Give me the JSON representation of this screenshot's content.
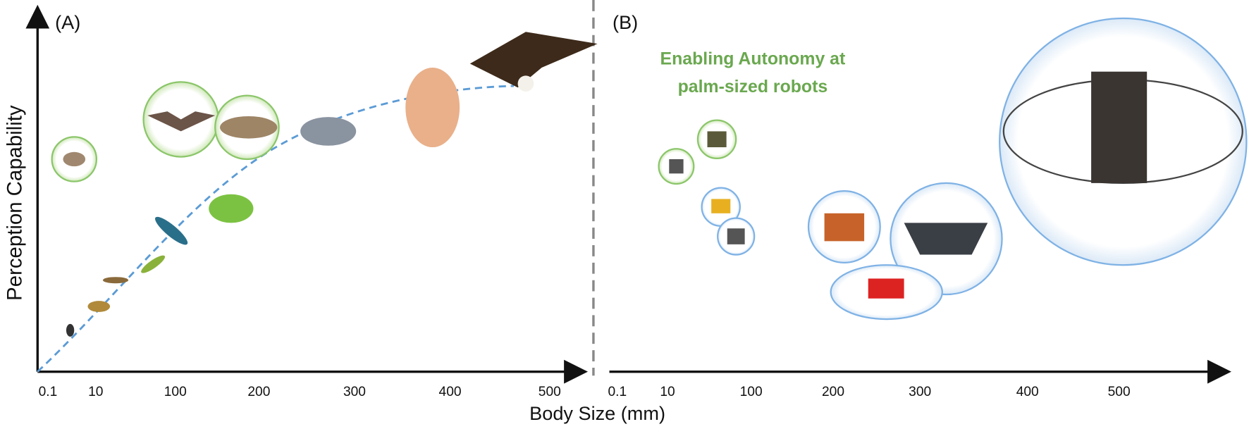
{
  "panel_a": {
    "label": "(A)",
    "y_axis_label": "Perception Capability",
    "x_ticks": [
      "0.1",
      "10",
      "100",
      "200",
      "300",
      "400",
      "500"
    ]
  },
  "panel_b": {
    "label": "(B)",
    "headline": [
      "Enabling Autonomy at",
      "palm-sized robots"
    ],
    "x_ticks": [
      "0.1",
      "10",
      "100",
      "200",
      "300",
      "400",
      "500"
    ]
  },
  "x_axis_label": "Body Size (mm)"
}
